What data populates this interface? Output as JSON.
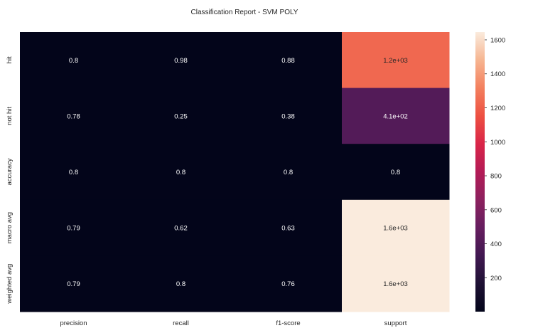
{
  "chart_data": {
    "type": "heatmap",
    "title": "Classification Report - SVM POLY",
    "rows": [
      "hit",
      "not hit",
      "accuracy",
      "macro avg",
      "weighted avg"
    ],
    "columns": [
      "precision",
      "recall",
      "f1-score",
      "support"
    ],
    "values": [
      [
        0.8,
        0.98,
        0.88,
        1236
      ],
      [
        0.78,
        0.25,
        0.38,
        410
      ],
      [
        0.8,
        0.8,
        0.8,
        0.8
      ],
      [
        0.79,
        0.62,
        0.63,
        1646
      ],
      [
        0.79,
        0.8,
        0.76,
        1646
      ]
    ],
    "annotations": [
      [
        "0.8",
        "0.98",
        "0.88",
        "1.2e+03"
      ],
      [
        "0.78",
        "0.25",
        "0.38",
        "4.1e+02"
      ],
      [
        "0.8",
        "0.8",
        "0.8",
        "0.8"
      ],
      [
        "0.79",
        "0.62",
        "0.63",
        "1.6e+03"
      ],
      [
        "0.79",
        "0.8",
        "0.76",
        "1.6e+03"
      ]
    ],
    "colormap": "rocket",
    "colorbar": {
      "range": [
        0.25,
        1646
      ],
      "ticks": [
        200,
        400,
        600,
        800,
        1000,
        1200,
        1400,
        1600
      ]
    }
  }
}
